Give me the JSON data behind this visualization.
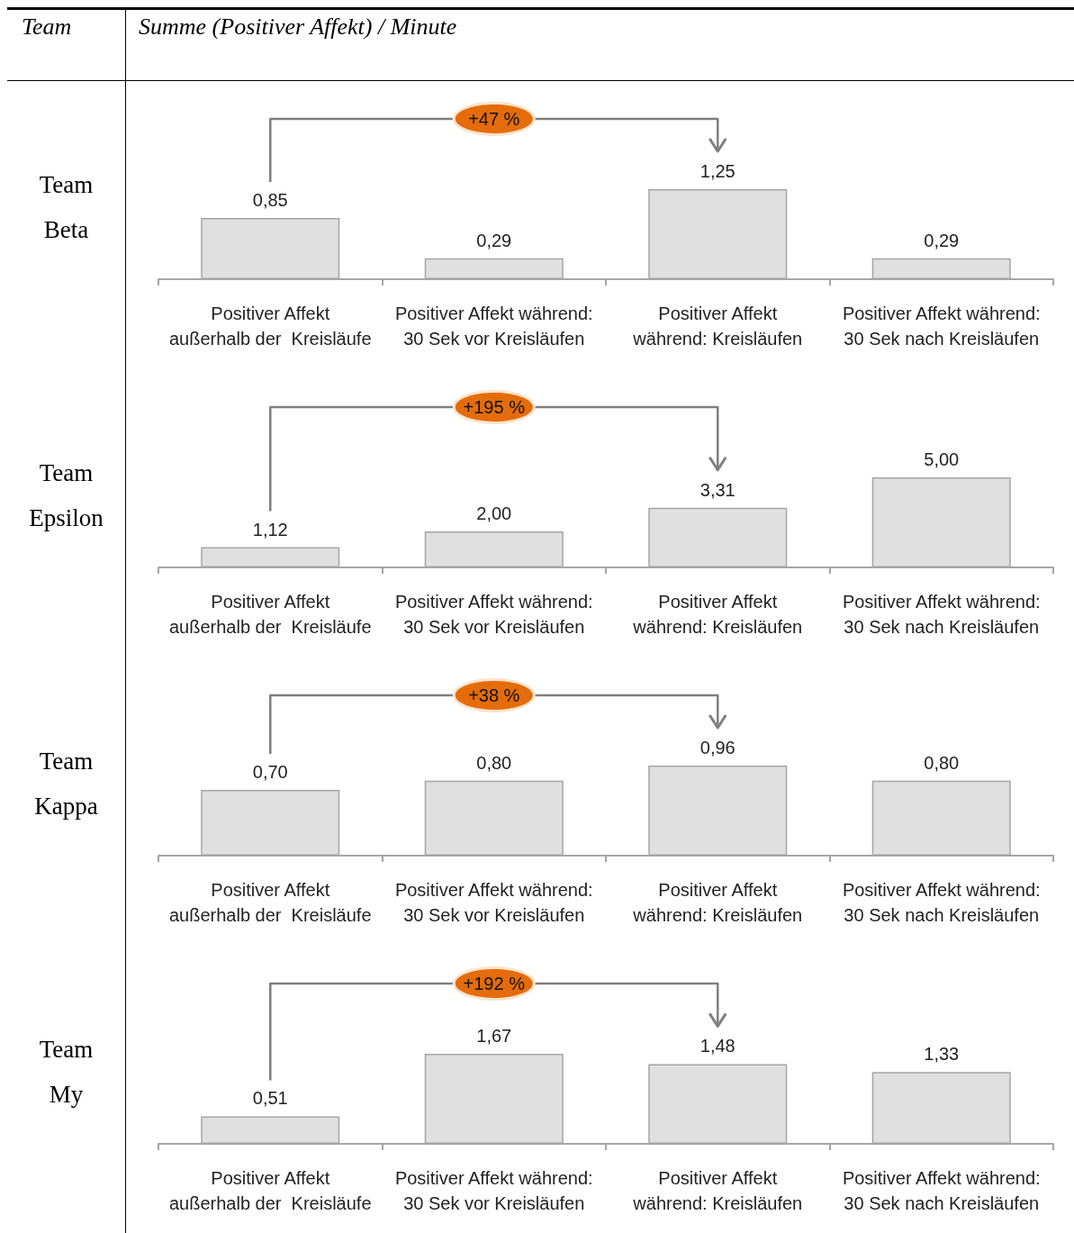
{
  "chart_data": [
    {
      "type": "bar",
      "title": "Team\nBeta",
      "categories": [
        "Positiver Affekt\naußerhalb der  Kreisläufe",
        "Positiver Affekt während:\n30 Sek vor Kreisläufen",
        "Positiver Affekt\nwährend: Kreisläufen",
        "Positiver Affekt während:\n30 Sek nach Kreisläufen"
      ],
      "values": [
        0.85,
        0.29,
        1.25,
        0.29
      ],
      "value_labels": [
        "0,85",
        "0,29",
        "1,25",
        "0,29"
      ],
      "color": "#e0e0e0",
      "annotations": [
        "Team",
        "Summe (Positiver Affekt) / Minute",
        "+47 %"
      ]
    },
    {
      "type": "bar",
      "title": "Team\nEpsilon",
      "categories": [
        "Positiver Affekt\naußerhalb der  Kreisläufe",
        "Positiver Affekt während:\n30 Sek vor Kreisläufen",
        "Positiver Affekt\nwährend: Kreisläufen",
        "Positiver Affekt während:\n30 Sek nach Kreisläufen"
      ],
      "values": [
        1.12,
        2.0,
        3.31,
        5.0
      ],
      "value_labels": [
        "1,12",
        "2,00",
        "3,31",
        "5,00"
      ],
      "color": "#e0e0e0",
      "annotations": [
        "+195 %"
      ]
    },
    {
      "type": "bar",
      "title": "Team\nKappa",
      "categories": [
        "Positiver Affekt\naußerhalb der  Kreisläufe",
        "Positiver Affekt während:\n30 Sek vor Kreisläufen",
        "Positiver Affekt\nwährend: Kreisläufen",
        "Positiver Affekt während:\n30 Sek nach Kreisläufen"
      ],
      "values": [
        0.7,
        0.8,
        0.96,
        0.8
      ],
      "value_labels": [
        "0,70",
        "0,80",
        "0,96",
        "0,80"
      ],
      "color": "#e0e0e0",
      "annotations": [
        "+38 %"
      ]
    },
    {
      "type": "bar",
      "title": "Team\nMy",
      "categories": [
        "Positiver Affekt\naußerhalb der  Kreisläufe",
        "Positiver Affekt während:\n30 Sek vor Kreisläufen",
        "Positiver Affekt\nwährend: Kreisläufen",
        "Positiver Affekt während:\n30 Sek nach Kreisläufen"
      ],
      "values": [
        0.51,
        1.67,
        1.48,
        1.33
      ],
      "value_labels": [
        "0,51",
        "1,67",
        "1,48",
        "1,33"
      ],
      "color": "#e0e0e0",
      "annotations": [
        "+192 %"
      ]
    }
  ]
}
